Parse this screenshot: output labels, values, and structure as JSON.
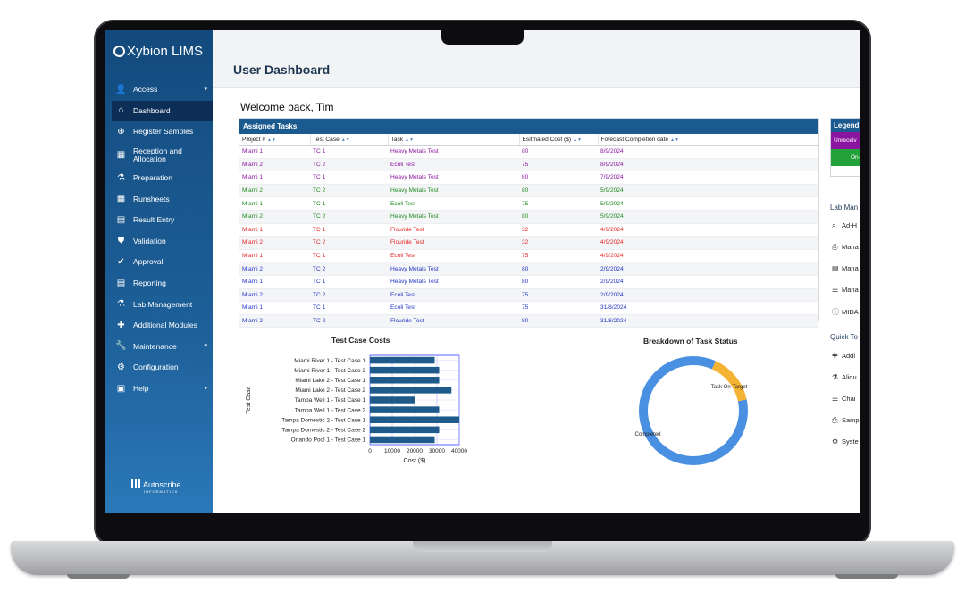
{
  "app": {
    "name": "Xybion LIMS",
    "vendor_logo": "Autoscribe",
    "vendor_tagline": "INFORMATICS"
  },
  "sidebar": {
    "items": [
      {
        "label": "Access",
        "icon": "user-icon",
        "has_caret": true
      },
      {
        "label": "Dashboard",
        "icon": "home-icon",
        "active": true
      },
      {
        "label": "Register Samples",
        "icon": "plus-circle-icon"
      },
      {
        "label": "Reception and Allocation",
        "icon": "building-icon"
      },
      {
        "label": "Preparation",
        "icon": "mortar-icon"
      },
      {
        "label": "Runsheets",
        "icon": "grid-icon"
      },
      {
        "label": "Result Entry",
        "icon": "table-icon"
      },
      {
        "label": "Validation",
        "icon": "shield-icon"
      },
      {
        "label": "Approval",
        "icon": "approval-icon"
      },
      {
        "label": "Reporting",
        "icon": "file-icon"
      },
      {
        "label": "Lab Management",
        "icon": "flask-icon"
      },
      {
        "label": "Additional Modules",
        "icon": "puzzle-icon"
      },
      {
        "label": "Maintenance",
        "icon": "wrench-icon",
        "has_caret": true
      },
      {
        "label": "Configuration",
        "icon": "gear-icon"
      },
      {
        "label": "Help",
        "icon": "help-card-icon",
        "has_caret": true
      }
    ]
  },
  "header": {
    "title": "User Dashboard"
  },
  "welcome": "Welcome back, Tim",
  "tasks": {
    "title": "Assigned Tasks",
    "columns": [
      "Project #",
      "Test Case",
      "Task",
      "Esitmated Cost ($)",
      "Forecast Completion date"
    ],
    "rows": [
      {
        "project": "Miami 1",
        "test_case": "TC 1",
        "task": "Heavy Metals Test",
        "cost": "80",
        "date": "8/9/2024",
        "status_color": "purple"
      },
      {
        "project": "Miami 2",
        "test_case": "TC 2",
        "task": "Ecoli Test",
        "cost": "75",
        "date": "8/9/2024",
        "status_color": "purple"
      },
      {
        "project": "Miami 1",
        "test_case": "TC 1",
        "task": "Heavy Metals Test",
        "cost": "80",
        "date": "7/9/2024",
        "status_color": "purple"
      },
      {
        "project": "Miami 2",
        "test_case": "TC 2",
        "task": "Heavy Metals Test",
        "cost": "80",
        "date": "5/9/2024",
        "status_color": "green"
      },
      {
        "project": "Miami 1",
        "test_case": "TC 1",
        "task": "Ecoli Test",
        "cost": "75",
        "date": "5/9/2024",
        "status_color": "green"
      },
      {
        "project": "Miami 2",
        "test_case": "TC 2",
        "task": "Heavy Metals Test",
        "cost": "80",
        "date": "5/9/2024",
        "status_color": "green"
      },
      {
        "project": "Miami 1",
        "test_case": "TC 1",
        "task": "Flouride Test",
        "cost": "32",
        "date": "4/9/2024",
        "status_color": "red"
      },
      {
        "project": "Miami 2",
        "test_case": "TC 2",
        "task": "Flouride Test",
        "cost": "32",
        "date": "4/9/2024",
        "status_color": "red"
      },
      {
        "project": "Miami 1",
        "test_case": "TC 1",
        "task": "Ecoli Test",
        "cost": "75",
        "date": "4/9/2024",
        "status_color": "red"
      },
      {
        "project": "Miami 2",
        "test_case": "TC 2",
        "task": "Heavy Metals Test",
        "cost": "80",
        "date": "2/9/2024",
        "status_color": "blue"
      },
      {
        "project": "Miami 1",
        "test_case": "TC 1",
        "task": "Heavy Metals Test",
        "cost": "80",
        "date": "2/9/2024",
        "status_color": "blue"
      },
      {
        "project": "Miami 2",
        "test_case": "TC 2",
        "task": "Ecoli Test",
        "cost": "75",
        "date": "2/9/2024",
        "status_color": "blue"
      },
      {
        "project": "Miami 1",
        "test_case": "TC 1",
        "task": "Ecoli Test",
        "cost": "75",
        "date": "31/8/2024",
        "status_color": "blue"
      },
      {
        "project": "Miami 2",
        "test_case": "TC 2",
        "task": "Flouride Test",
        "cost": "80",
        "date": "31/8/2024",
        "status_color": "blue"
      }
    ]
  },
  "legend": {
    "title": "Legend",
    "items": [
      "Unreceiv",
      "On-"
    ]
  },
  "lab_management": {
    "title": "Lab Man",
    "links": [
      {
        "label": "Ad-H",
        "icon": "search-icon"
      },
      {
        "label": "Mana",
        "icon": "print-icon"
      },
      {
        "label": "Mana",
        "icon": "table-icon"
      },
      {
        "label": "Mana",
        "icon": "users-icon"
      },
      {
        "label": "MIDA",
        "icon": "info-icon"
      }
    ]
  },
  "quick_tools": {
    "title": "Quick To",
    "links": [
      {
        "label": "Addi",
        "icon": "puzzle-icon"
      },
      {
        "label": "Aliqu",
        "icon": "flask-icon"
      },
      {
        "label": "Chai",
        "icon": "people-icon"
      },
      {
        "label": "Samp",
        "icon": "printer-icon"
      },
      {
        "label": "Syste",
        "icon": "cogs-icon"
      }
    ]
  },
  "colors": {
    "purple": "#8a16a0",
    "green": "#1f8a1f",
    "red": "#e32626",
    "blue": "#2236c8",
    "bar": "#1e5a8a",
    "donut_completed": "#4a90e2",
    "donut_on_target": "#f5b335"
  },
  "chart_data": [
    {
      "type": "bar",
      "orientation": "horizontal",
      "title": "Test Case Costs",
      "xlabel": "Cost ($)",
      "ylabel": "Test Case",
      "categories": [
        "Miami River 1 - Test Case 1",
        "Miami River 1 - Test Case 2",
        "Miami Lake 2 - Test Case 1",
        "Miami Lake 2 - Test Case 2",
        "Tampa Well 1 - Test Case 1",
        "Tampa Well 1 - Test Case 2",
        "Tampa Domestic 2 - Test Case 1",
        "Tampa Domestic 2 - Test Case 2",
        "Orlando Pool 1 - Test Case 1"
      ],
      "values": [
        29000,
        31000,
        31000,
        36500,
        20000,
        31000,
        40000,
        31000,
        29000
      ],
      "xlim": [
        0,
        40000
      ],
      "xticks": [
        "0",
        "10000",
        "20000",
        "30000",
        "40000"
      ],
      "grid": true
    },
    {
      "type": "pie",
      "variant": "donut",
      "title": "Breakdown of Task Status",
      "slices": [
        {
          "label": "Task On-Target",
          "value": 15
        },
        {
          "label": "Completed",
          "value": 85
        }
      ]
    }
  ]
}
